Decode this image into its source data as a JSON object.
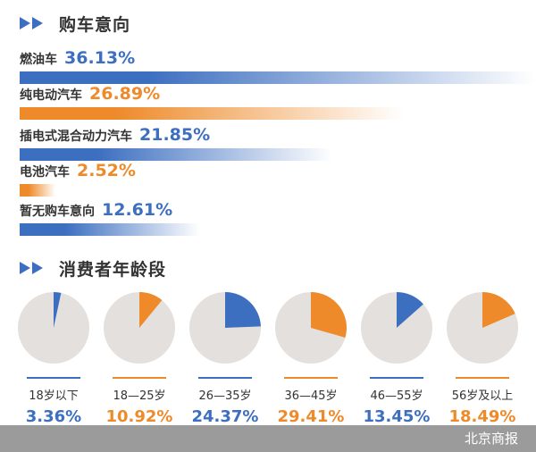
{
  "colors": {
    "blue": "#3d6fc0",
    "orange": "#ee8a2a",
    "pie_bg": "#e4e0dd",
    "title": "#333333",
    "footer_bg": "#9b9b9b"
  },
  "sections": {
    "purchase_title": "购车意向",
    "age_title": "消费者年龄段"
  },
  "footer": {
    "source": "北京商报"
  },
  "chart_data": [
    {
      "type": "bar",
      "title": "购车意向",
      "categories": [
        "燃油车",
        "纯电动汽车",
        "插电式混合动力汽车",
        "电池汽车",
        "暂无购车意向"
      ],
      "values": [
        36.13,
        26.89,
        21.85,
        2.52,
        12.61
      ],
      "value_labels": [
        "36.13%",
        "26.89%",
        "21.85%",
        "2.52%",
        "12.61%"
      ],
      "bar_colors": [
        "blue",
        "orange",
        "blue",
        "orange",
        "blue"
      ],
      "unit": "%",
      "xlim": [
        0,
        36.13
      ]
    },
    {
      "type": "pie",
      "title": "消费者年龄段",
      "categories": [
        "18岁以下",
        "18—25岁",
        "26—35岁",
        "36—45岁",
        "46—55岁",
        "56岁及以上"
      ],
      "values": [
        3.36,
        10.92,
        24.37,
        29.41,
        13.45,
        18.49
      ],
      "value_labels": [
        "3.36%",
        "10.92%",
        "24.37%",
        "29.41%",
        "13.45%",
        "18.49%"
      ],
      "slice_colors": [
        "blue",
        "orange",
        "blue",
        "orange",
        "blue",
        "orange"
      ],
      "unit": "%"
    }
  ]
}
